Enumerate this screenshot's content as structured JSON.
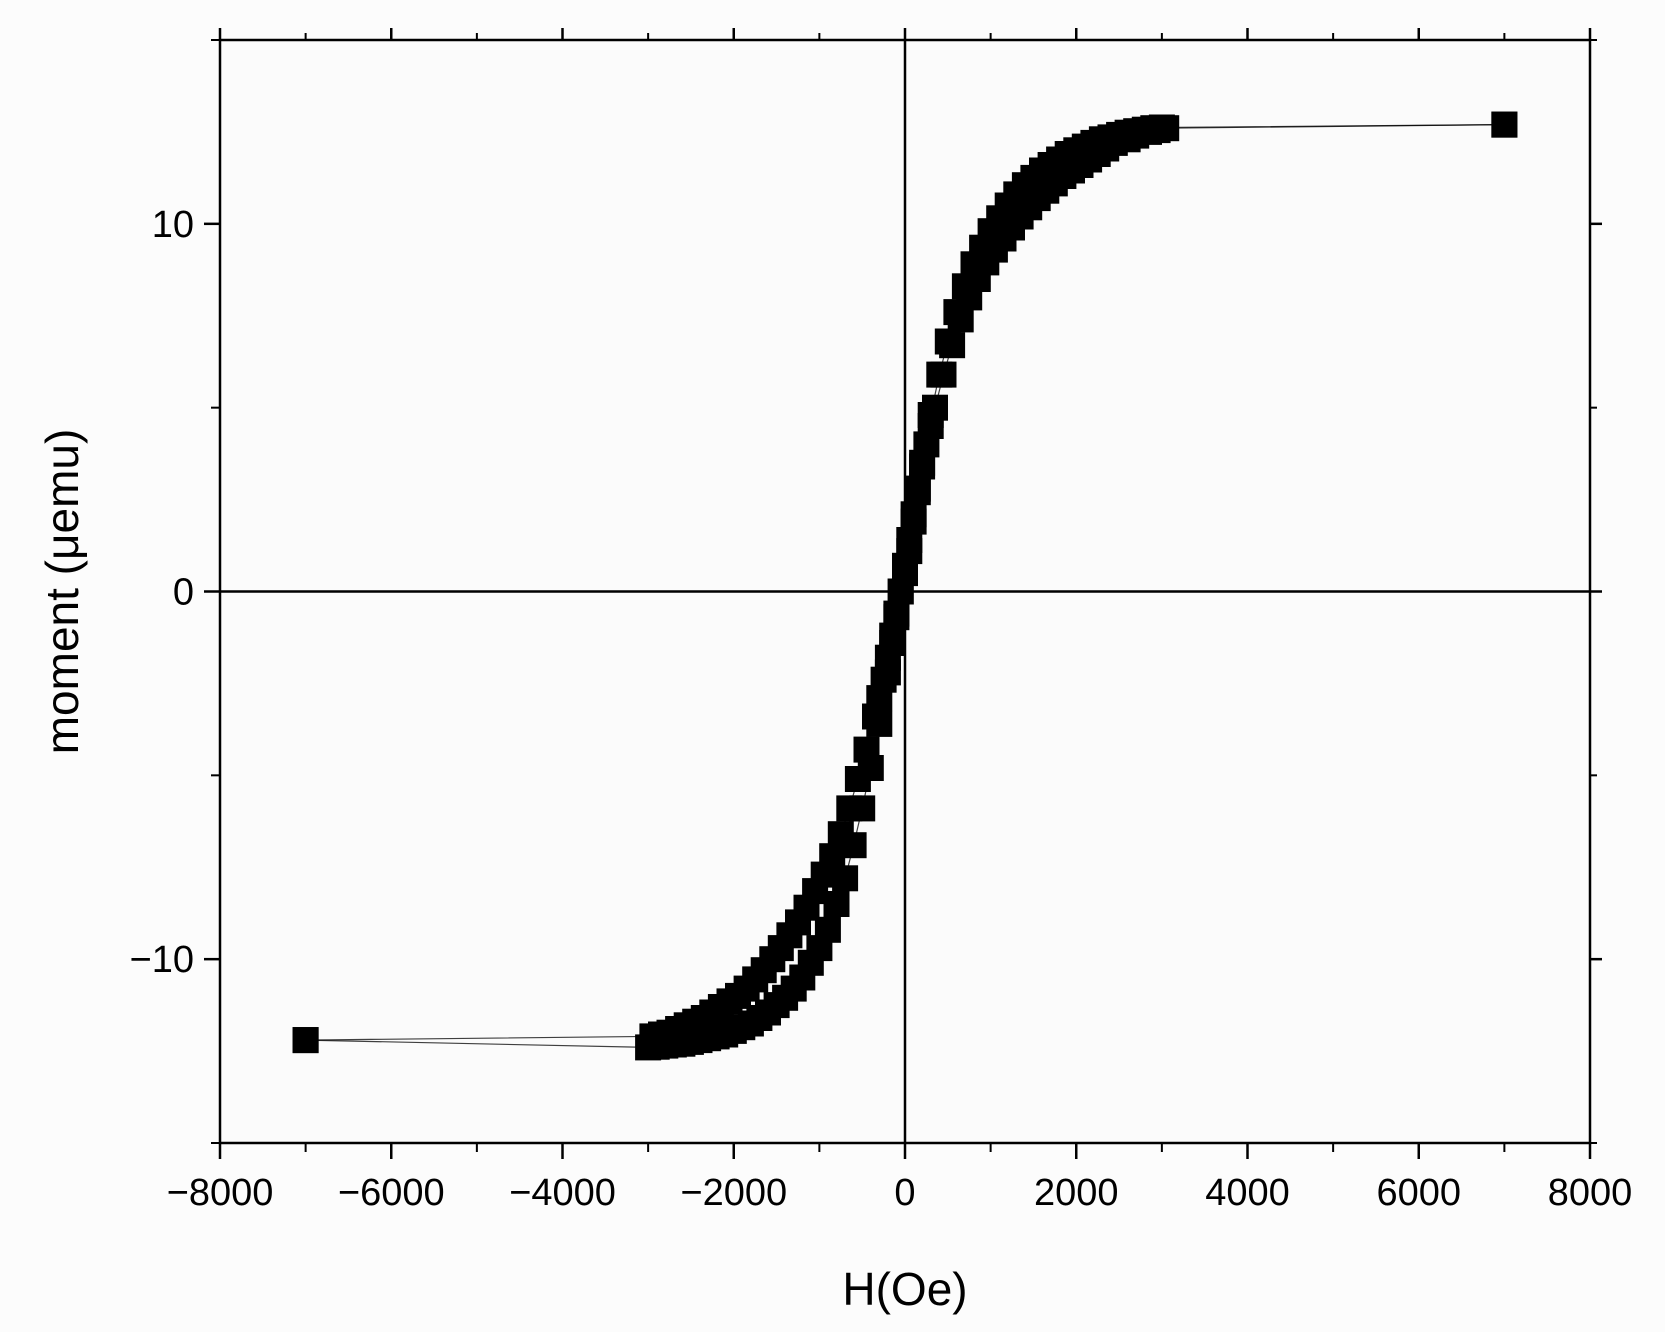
{
  "chart_data": {
    "type": "scatter",
    "title": "",
    "xlabel": "H(Oe)",
    "ylabel": "moment (μemu)",
    "xlim": [
      -8000,
      8000
    ],
    "ylim": [
      -15,
      15
    ],
    "x_ticks": [
      -8000,
      -6000,
      -4000,
      -2000,
      0,
      2000,
      4000,
      6000,
      8000
    ],
    "x_tick_labels": [
      "−8000",
      "−6000",
      "−4000",
      "−2000",
      "0",
      "2000",
      "4000",
      "6000",
      "8000"
    ],
    "y_ticks": [
      -10,
      0,
      10
    ],
    "y_tick_labels": [
      "−10",
      "0",
      "10"
    ],
    "grid": false,
    "zero_lines": true,
    "marker": "square",
    "colors": {
      "marker": "#000000",
      "line": "#000000",
      "axes": "#000000"
    },
    "series": [
      {
        "x": [
          7000,
          3050,
          2950,
          2850,
          2700,
          2600,
          2450,
          2350,
          2250,
          2150,
          2050,
          1950,
          1850,
          1750,
          1650,
          1550,
          1450,
          1350,
          1250,
          1150,
          1050,
          950,
          850,
          750,
          650,
          550,
          450,
          350,
          300,
          250,
          200,
          150,
          100,
          50,
          0,
          -50,
          -100,
          -150,
          -200,
          -300,
          -400,
          -500,
          -600,
          -700,
          -800,
          -900,
          -1000,
          -1100,
          -1200,
          -1300,
          -1400,
          -1500,
          -1600,
          -1700,
          -1800,
          -1900,
          -2000,
          -2100,
          -2200,
          -2300,
          -2400,
          -2500,
          -2600,
          -2700,
          -2800,
          -2900,
          -3000,
          -7000
        ],
        "y": [
          12.7,
          12.6,
          12.55,
          12.5,
          12.4,
          12.3,
          12.2,
          12.05,
          11.9,
          11.75,
          11.6,
          11.45,
          11.3,
          11.1,
          10.9,
          10.7,
          10.45,
          10.2,
          9.9,
          9.6,
          9.3,
          8.95,
          8.5,
          8.0,
          7.4,
          6.7,
          5.9,
          5.0,
          4.5,
          4.0,
          3.4,
          2.8,
          2.1,
          1.4,
          0.7,
          0.0,
          -0.7,
          -1.4,
          -2.2,
          -3.6,
          -4.8,
          -5.9,
          -6.9,
          -7.8,
          -8.5,
          -9.2,
          -9.7,
          -10.1,
          -10.5,
          -10.8,
          -11.05,
          -11.25,
          -11.45,
          -11.6,
          -11.75,
          -11.85,
          -11.95,
          -12.05,
          -12.1,
          -12.15,
          -12.2,
          -12.25,
          -12.3,
          -12.32,
          -12.35,
          -12.38,
          -12.4,
          -12.2
        ]
      },
      {
        "x": [
          -7000,
          -2950,
          -2850,
          -2750,
          -2650,
          -2550,
          -2450,
          -2350,
          -2250,
          -2150,
          -2050,
          -1950,
          -1850,
          -1750,
          -1650,
          -1550,
          -1450,
          -1350,
          -1250,
          -1150,
          -1050,
          -950,
          -850,
          -750,
          -650,
          -550,
          -450,
          -350,
          -300,
          -250,
          -200,
          -150,
          -100,
          -50,
          0,
          50,
          100,
          150,
          200,
          300,
          400,
          500,
          600,
          700,
          800,
          900,
          1000,
          1100,
          1200,
          1300,
          1400,
          1500,
          1600,
          1700,
          1800,
          1900,
          2000,
          2100,
          2200,
          2300,
          2400,
          2500,
          2600,
          2700,
          2800,
          2900,
          3000,
          7000
        ],
        "y": [
          -12.2,
          -12.1,
          -12.05,
          -12.0,
          -11.9,
          -11.8,
          -11.7,
          -11.6,
          -11.45,
          -11.3,
          -11.15,
          -11.0,
          -10.8,
          -10.55,
          -10.3,
          -10.0,
          -9.7,
          -9.35,
          -9.0,
          -8.6,
          -8.15,
          -7.7,
          -7.2,
          -6.6,
          -5.9,
          -5.1,
          -4.3,
          -3.4,
          -2.9,
          -2.4,
          -1.8,
          -1.2,
          -0.6,
          0.0,
          0.5,
          1.1,
          1.9,
          2.7,
          3.5,
          4.8,
          5.9,
          6.8,
          7.6,
          8.3,
          8.9,
          9.35,
          9.8,
          10.15,
          10.5,
          10.8,
          11.05,
          11.25,
          11.45,
          11.6,
          11.75,
          11.9,
          12.0,
          12.1,
          12.2,
          12.3,
          12.35,
          12.42,
          12.48,
          12.52,
          12.56,
          12.6,
          12.62,
          12.7
        ]
      }
    ]
  }
}
